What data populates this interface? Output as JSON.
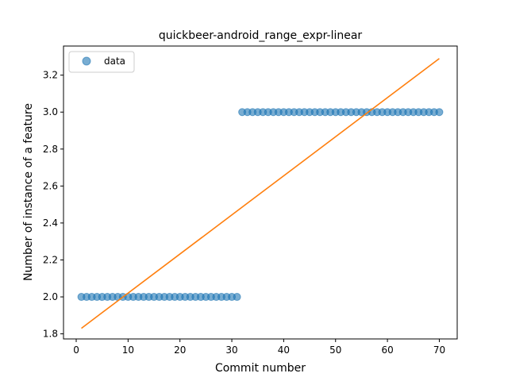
{
  "chart_data": {
    "type": "scatter",
    "title": "quickbeer-android_range_expr-linear",
    "xlabel": "Commit number",
    "ylabel": "Number of instance of a feature",
    "xlim": [
      -2.45,
      73.45
    ],
    "ylim": [
      1.7725,
      3.3575
    ],
    "xticks": [
      0,
      10,
      20,
      30,
      40,
      50,
      60,
      70
    ],
    "yticks": [
      1.8,
      2.0,
      2.2,
      2.4,
      2.6,
      2.8,
      3.0,
      3.2
    ],
    "ytick_labels": [
      "1.8",
      "2.0",
      "2.2",
      "2.4",
      "2.6",
      "2.8",
      "3.0",
      "3.2"
    ],
    "legend": {
      "position": "upper-left",
      "entries": [
        "data"
      ]
    },
    "grid": false,
    "series": [
      {
        "name": "data",
        "kind": "scatter",
        "color": "#1f77b4",
        "segments": [
          {
            "x_start": 1,
            "x_end": 31,
            "y": 2.0
          },
          {
            "x_start": 32,
            "x_end": 70,
            "y": 3.0
          }
        ]
      },
      {
        "kind": "line",
        "color": "#ff7f0e",
        "x": [
          1,
          70
        ],
        "y": [
          1.83,
          3.29
        ]
      }
    ]
  }
}
